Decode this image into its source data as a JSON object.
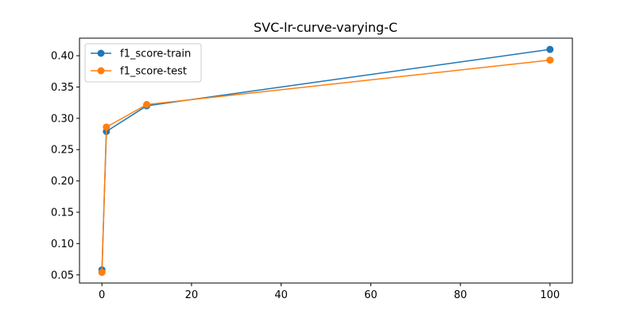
{
  "chart_data": {
    "type": "line",
    "title": "SVC-lr-curve-varying-C",
    "xlabel": "",
    "ylabel": "",
    "xlim": [
      -5,
      105
    ],
    "ylim": [
      0.037,
      0.428
    ],
    "xticks": [
      0,
      20,
      40,
      60,
      80,
      100
    ],
    "yticks": [
      0.05,
      0.1,
      0.15,
      0.2,
      0.25,
      0.3,
      0.35,
      0.4
    ],
    "xtick_labels": [
      "0",
      "20",
      "40",
      "60",
      "80",
      "100"
    ],
    "ytick_labels": [
      "0.05",
      "0.10",
      "0.15",
      "0.20",
      "0.25",
      "0.30",
      "0.35",
      "0.40"
    ],
    "grid": false,
    "legend_position": "upper-left",
    "x": [
      0.01,
      1,
      10,
      100
    ],
    "series": [
      {
        "name": "f1_score-train",
        "color": "#1f77b4",
        "values": [
          0.058,
          0.279,
          0.32,
          0.41
        ]
      },
      {
        "name": "f1_score-test",
        "color": "#ff7f0e",
        "values": [
          0.054,
          0.286,
          0.322,
          0.393
        ]
      }
    ]
  }
}
